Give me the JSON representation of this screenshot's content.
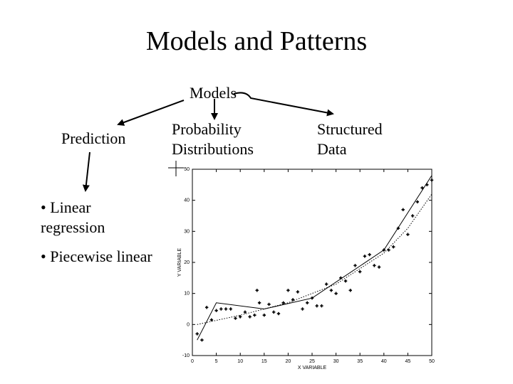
{
  "title": "Models and Patterns",
  "root": "Models",
  "branches": {
    "prediction": "Prediction",
    "probability": [
      "Probability",
      "Distributions"
    ],
    "structured": [
      "Structured",
      "Data"
    ]
  },
  "bullets": [
    "• Linear",
    "regression",
    "• Piecewise linear"
  ],
  "chart_data": {
    "type": "scatter",
    "xlabel": "X VARIABLE",
    "ylabel": "Y VARIABLE",
    "xlim": [
      0,
      50
    ],
    "ylim": [
      -10,
      50
    ],
    "xticks": [
      0,
      5,
      10,
      15,
      20,
      25,
      30,
      35,
      40,
      45,
      50
    ],
    "yticks": [
      -10,
      0,
      10,
      20,
      30,
      40,
      50
    ],
    "series": [
      {
        "points": [
          [
            1,
            -3
          ],
          [
            2,
            -5
          ],
          [
            3,
            5.5
          ],
          [
            4,
            1.5
          ],
          [
            5,
            4.5
          ],
          [
            6,
            5
          ],
          [
            7,
            5
          ],
          [
            8,
            5
          ],
          [
            9,
            2
          ],
          [
            10,
            2.5
          ],
          [
            11,
            4
          ],
          [
            12,
            2.5
          ],
          [
            13,
            3
          ],
          [
            13.5,
            11
          ],
          [
            14,
            7
          ],
          [
            15,
            3
          ],
          [
            16,
            6.5
          ],
          [
            17,
            4
          ],
          [
            18,
            3.5
          ],
          [
            19,
            7
          ],
          [
            20,
            11
          ],
          [
            21,
            8
          ],
          [
            22,
            10.5
          ],
          [
            23,
            5
          ],
          [
            24,
            7
          ],
          [
            25,
            8.5
          ],
          [
            26,
            6
          ],
          [
            27,
            6
          ],
          [
            28,
            13
          ],
          [
            29,
            11
          ],
          [
            30,
            10
          ],
          [
            31,
            15
          ],
          [
            32,
            14
          ],
          [
            33,
            11
          ],
          [
            34,
            19
          ],
          [
            35,
            17
          ],
          [
            36,
            22
          ],
          [
            37,
            22.5
          ],
          [
            38,
            19
          ],
          [
            39,
            18.5
          ],
          [
            40,
            24
          ],
          [
            41,
            24
          ],
          [
            42,
            25
          ],
          [
            43,
            31
          ],
          [
            44,
            37
          ],
          [
            45,
            29
          ],
          [
            46,
            35
          ],
          [
            47,
            39.5
          ],
          [
            48,
            44
          ],
          [
            49,
            45
          ],
          [
            50,
            46.5
          ]
        ]
      }
    ],
    "piecewise_fit": [
      [
        1,
        -5
      ],
      [
        5,
        7
      ],
      [
        15,
        5
      ],
      [
        25,
        8.5
      ],
      [
        40,
        24
      ],
      [
        50,
        48
      ]
    ],
    "linear_fit": [
      [
        1,
        0
      ],
      [
        10,
        3
      ],
      [
        20,
        7
      ],
      [
        30,
        13
      ],
      [
        40,
        23
      ],
      [
        45,
        31
      ],
      [
        50,
        42
      ]
    ]
  }
}
